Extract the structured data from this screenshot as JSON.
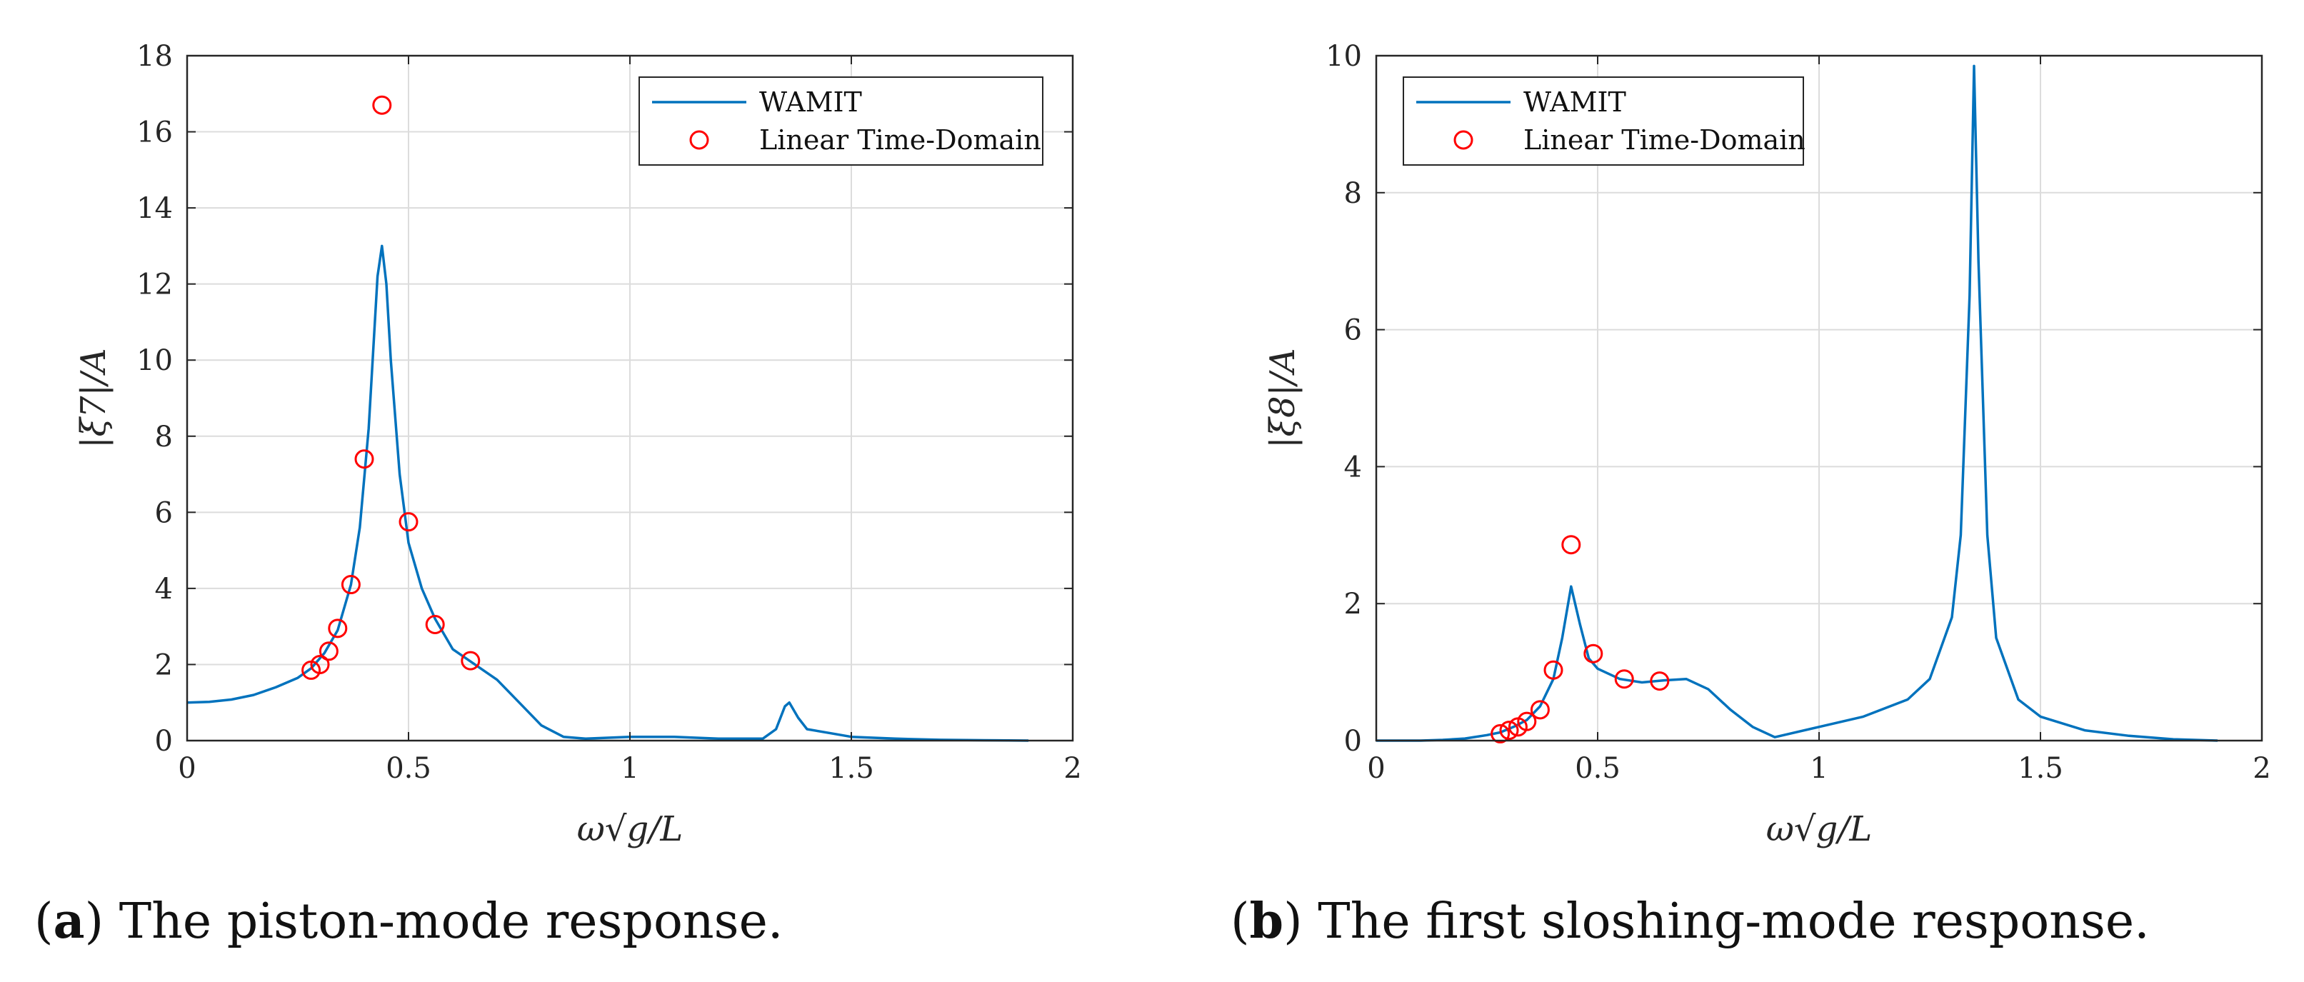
{
  "chart_data": [
    {
      "type": "line",
      "id": "a",
      "caption_letter": "a",
      "caption_text": "The piston-mode response.",
      "xlabel": "ω√g/L",
      "ylabel": "|ξ7|/A",
      "xlim": [
        0,
        2
      ],
      "ylim": [
        0,
        18
      ],
      "xticks": [
        0,
        0.5,
        1,
        1.5,
        2
      ],
      "xtick_labels": [
        "0",
        "0.5",
        "1",
        "1.5",
        "2"
      ],
      "yticks": [
        0,
        2,
        4,
        6,
        8,
        10,
        12,
        14,
        16,
        18
      ],
      "ytick_labels": [
        "0",
        "2",
        "4",
        "6",
        "8",
        "10",
        "12",
        "14",
        "16",
        "18"
      ],
      "grid": true,
      "legend_position": "top-right",
      "series": [
        {
          "name": "WAMIT",
          "style": "line",
          "color": "#0072BD",
          "x": [
            0,
            0.05,
            0.1,
            0.15,
            0.2,
            0.25,
            0.28,
            0.31,
            0.34,
            0.37,
            0.39,
            0.41,
            0.42,
            0.43,
            0.44,
            0.45,
            0.46,
            0.48,
            0.5,
            0.53,
            0.56,
            0.6,
            0.65,
            0.7,
            0.75,
            0.8,
            0.85,
            0.9,
            1.0,
            1.1,
            1.2,
            1.3,
            1.33,
            1.35,
            1.36,
            1.38,
            1.4,
            1.45,
            1.5,
            1.6,
            1.7,
            1.8,
            1.9
          ],
          "y": [
            1.0,
            1.02,
            1.08,
            1.2,
            1.4,
            1.65,
            1.9,
            2.3,
            2.9,
            4.1,
            5.6,
            8.2,
            10.2,
            12.2,
            13.0,
            12.0,
            10.0,
            7.0,
            5.2,
            4.0,
            3.2,
            2.4,
            2.0,
            1.6,
            1.0,
            0.4,
            0.1,
            0.05,
            0.1,
            0.1,
            0.05,
            0.05,
            0.3,
            0.9,
            1.0,
            0.6,
            0.3,
            0.2,
            0.1,
            0.05,
            0.02,
            0.01,
            0.0
          ]
        },
        {
          "name": "Linear Time-Domain",
          "style": "markers",
          "color": "#FF0000",
          "x": [
            0.28,
            0.3,
            0.32,
            0.34,
            0.37,
            0.4,
            0.44,
            0.5,
            0.56,
            0.64
          ],
          "y": [
            1.85,
            2.0,
            2.35,
            2.95,
            4.1,
            7.4,
            16.7,
            5.75,
            3.05,
            2.1
          ]
        }
      ]
    },
    {
      "type": "line",
      "id": "b",
      "caption_letter": "b",
      "caption_text": "The first sloshing-mode response.",
      "xlabel": "ω√g/L",
      "ylabel": "|ξ8|/A",
      "xlim": [
        0,
        2
      ],
      "ylim": [
        0,
        10
      ],
      "xticks": [
        0,
        0.5,
        1,
        1.5,
        2
      ],
      "xtick_labels": [
        "0",
        "0.5",
        "1",
        "1.5",
        "2"
      ],
      "yticks": [
        0,
        2,
        4,
        6,
        8,
        10
      ],
      "ytick_labels": [
        "0",
        "2",
        "4",
        "6",
        "8",
        "10"
      ],
      "grid": true,
      "legend_position": "top-left",
      "series": [
        {
          "name": "WAMIT",
          "style": "line",
          "color": "#0072BD",
          "x": [
            0,
            0.1,
            0.15,
            0.2,
            0.25,
            0.28,
            0.31,
            0.34,
            0.37,
            0.4,
            0.42,
            0.44,
            0.46,
            0.48,
            0.5,
            0.55,
            0.6,
            0.65,
            0.7,
            0.75,
            0.8,
            0.85,
            0.9,
            1.0,
            1.1,
            1.2,
            1.25,
            1.3,
            1.32,
            1.34,
            1.35,
            1.36,
            1.38,
            1.4,
            1.45,
            1.5,
            1.6,
            1.7,
            1.8,
            1.9
          ],
          "y": [
            0.0,
            0.0,
            0.01,
            0.03,
            0.08,
            0.12,
            0.2,
            0.3,
            0.5,
            0.9,
            1.5,
            2.25,
            1.7,
            1.2,
            1.05,
            0.9,
            0.85,
            0.88,
            0.9,
            0.75,
            0.45,
            0.2,
            0.05,
            0.2,
            0.35,
            0.6,
            0.9,
            1.8,
            3.0,
            6.5,
            9.85,
            7.0,
            3.0,
            1.5,
            0.6,
            0.35,
            0.15,
            0.07,
            0.02,
            0.0
          ]
        },
        {
          "name": "Linear Time-Domain",
          "style": "markers",
          "color": "#FF0000",
          "x": [
            0.28,
            0.3,
            0.32,
            0.34,
            0.37,
            0.4,
            0.44,
            0.49,
            0.56,
            0.64
          ],
          "y": [
            0.1,
            0.15,
            0.2,
            0.28,
            0.45,
            1.03,
            2.86,
            1.27,
            0.9,
            0.87
          ]
        }
      ]
    }
  ]
}
